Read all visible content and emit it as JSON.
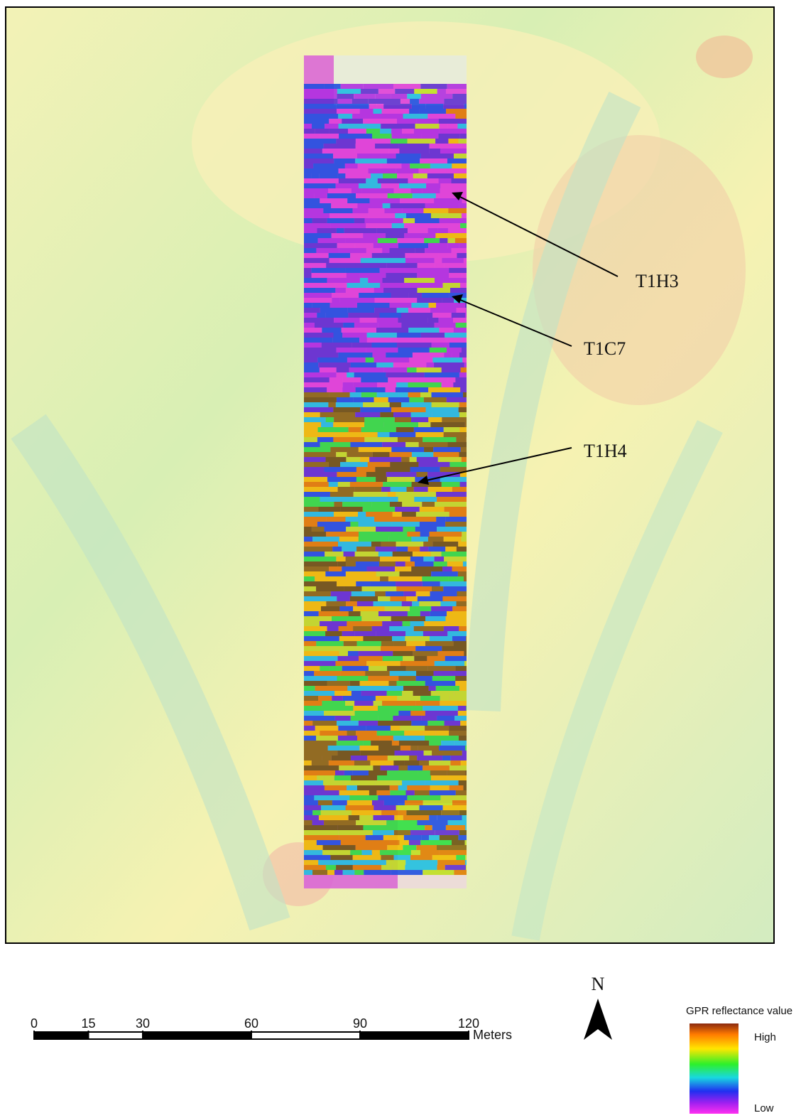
{
  "annotations": [
    "T1H3",
    "T1C7",
    "T1H4"
  ],
  "scale_bar": {
    "ticks": [
      0,
      15,
      30,
      60,
      90,
      120
    ],
    "unit": "Meters"
  },
  "north_arrow": "N",
  "legend": {
    "title": "GPR reflectance value",
    "high": "High",
    "low": "Low"
  }
}
